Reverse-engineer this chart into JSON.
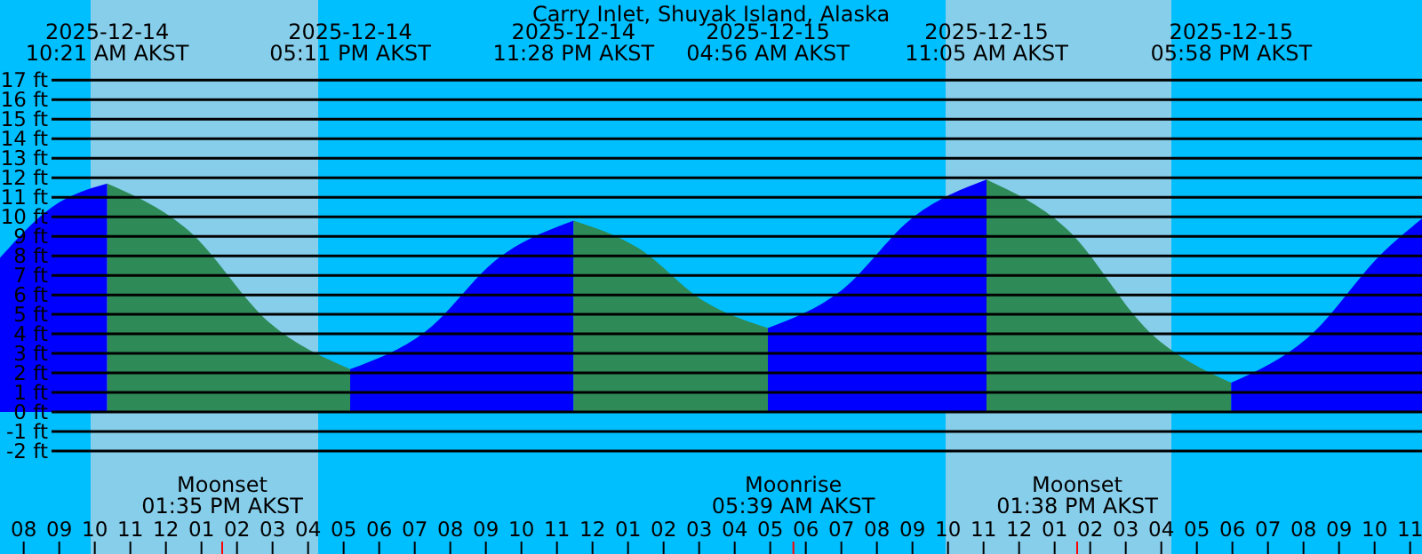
{
  "chart_data": {
    "type": "area",
    "title": "Carry Inlet, Shuyak Island, Alaska",
    "series": [
      {
        "color": "#0000ff",
        "x": [
          "2025-12-14T07:20",
          "2025-12-14T08:48",
          "2025-12-14T10:21"
        ],
        "values": [
          7.9,
          10.5,
          11.7
        ]
      },
      {
        "color": "#2e8b57",
        "x": [
          "2025-12-14T10:21",
          "2025-12-14T12:38",
          "2025-12-14T14:54",
          "2025-12-14T17:11"
        ],
        "values": [
          11.7,
          9.3,
          4.6,
          2.2
        ]
      },
      {
        "color": "#0000ff",
        "x": [
          "2025-12-14T17:11",
          "2025-12-14T19:17",
          "2025-12-14T21:22",
          "2025-12-14T23:28"
        ],
        "values": [
          2.2,
          4.1,
          7.9,
          9.8
        ]
      },
      {
        "color": "#2e8b57",
        "x": [
          "2025-12-14T23:28",
          "2025-12-15T01:17",
          "2025-12-15T03:07",
          "2025-12-15T04:56"
        ],
        "values": [
          9.8,
          8.4,
          5.7,
          4.3
        ]
      },
      {
        "color": "#0000ff",
        "x": [
          "2025-12-15T04:56",
          "2025-12-15T06:59",
          "2025-12-15T09:02",
          "2025-12-15T11:05"
        ],
        "values": [
          4.3,
          6.2,
          10.0,
          11.9
        ]
      },
      {
        "color": "#2e8b57",
        "x": [
          "2025-12-15T11:05",
          "2025-12-15T13:23",
          "2025-12-15T15:40",
          "2025-12-15T17:58"
        ],
        "values": [
          11.9,
          9.3,
          4.1,
          1.5
        ]
      },
      {
        "color": "#0000ff",
        "x": [
          "2025-12-15T17:58",
          "2025-12-15T20:07",
          "2025-12-15T22:15",
          "2025-12-15T23:20"
        ],
        "values": [
          1.5,
          3.8,
          8.2,
          9.9
        ]
      }
    ],
    "xlim": [
      "2025-12-14T07:20",
      "2025-12-15T23:20"
    ],
    "xticks": [
      {
        "value": "2025-12-14T08:00",
        "label": "08"
      },
      {
        "value": "2025-12-14T09:00",
        "label": "09"
      },
      {
        "value": "2025-12-14T10:00",
        "label": "10"
      },
      {
        "value": "2025-12-14T11:00",
        "label": "11"
      },
      {
        "value": "2025-12-14T12:00",
        "label": "12"
      },
      {
        "value": "2025-12-14T13:00",
        "label": "01"
      },
      {
        "value": "2025-12-14T14:00",
        "label": "02"
      },
      {
        "value": "2025-12-14T15:00",
        "label": "03"
      },
      {
        "value": "2025-12-14T16:00",
        "label": "04"
      },
      {
        "value": "2025-12-14T17:00",
        "label": "05"
      },
      {
        "value": "2025-12-14T18:00",
        "label": "06"
      },
      {
        "value": "2025-12-14T19:00",
        "label": "07"
      },
      {
        "value": "2025-12-14T20:00",
        "label": "08"
      },
      {
        "value": "2025-12-14T21:00",
        "label": "09"
      },
      {
        "value": "2025-12-14T22:00",
        "label": "10"
      },
      {
        "value": "2025-12-14T23:00",
        "label": "11"
      },
      {
        "value": "2025-12-15T00:00",
        "label": "12"
      },
      {
        "value": "2025-12-15T01:00",
        "label": "01"
      },
      {
        "value": "2025-12-15T02:00",
        "label": "02"
      },
      {
        "value": "2025-12-15T03:00",
        "label": "03"
      },
      {
        "value": "2025-12-15T04:00",
        "label": "04"
      },
      {
        "value": "2025-12-15T05:00",
        "label": "05"
      },
      {
        "value": "2025-12-15T06:00",
        "label": "06"
      },
      {
        "value": "2025-12-15T07:00",
        "label": "07"
      },
      {
        "value": "2025-12-15T08:00",
        "label": "08"
      },
      {
        "value": "2025-12-15T09:00",
        "label": "09"
      },
      {
        "value": "2025-12-15T10:00",
        "label": "10"
      },
      {
        "value": "2025-12-15T11:00",
        "label": "11"
      },
      {
        "value": "2025-12-15T12:00",
        "label": "12"
      },
      {
        "value": "2025-12-15T13:00",
        "label": "01"
      },
      {
        "value": "2025-12-15T14:00",
        "label": "02"
      },
      {
        "value": "2025-12-15T15:00",
        "label": "03"
      },
      {
        "value": "2025-12-15T16:00",
        "label": "04"
      },
      {
        "value": "2025-12-15T17:00",
        "label": "05"
      },
      {
        "value": "2025-12-15T18:00",
        "label": "06"
      },
      {
        "value": "2025-12-15T19:00",
        "label": "07"
      },
      {
        "value": "2025-12-15T20:00",
        "label": "08"
      },
      {
        "value": "2025-12-15T21:00",
        "label": "09"
      },
      {
        "value": "2025-12-15T22:00",
        "label": "10"
      },
      {
        "value": "2025-12-15T23:00",
        "label": "11"
      }
    ],
    "ylim": [
      -7.27,
      21.1
    ],
    "yticks": [
      {
        "value": -2,
        "label": "-2 ft"
      },
      {
        "value": -1,
        "label": "-1 ft"
      },
      {
        "value": 0,
        "label": "0 ft"
      },
      {
        "value": 1,
        "label": "1 ft"
      },
      {
        "value": 2,
        "label": "2 ft"
      },
      {
        "value": 3,
        "label": "3 ft"
      },
      {
        "value": 4,
        "label": "4 ft"
      },
      {
        "value": 5,
        "label": "5 ft"
      },
      {
        "value": 6,
        "label": "6 ft"
      },
      {
        "value": 7,
        "label": "7 ft"
      },
      {
        "value": 8,
        "label": "8 ft"
      },
      {
        "value": 9,
        "label": "9 ft"
      },
      {
        "value": 10,
        "label": "10 ft"
      },
      {
        "value": 11,
        "label": "11 ft"
      },
      {
        "value": 12,
        "label": "12 ft"
      },
      {
        "value": 13,
        "label": "13 ft"
      },
      {
        "value": 14,
        "label": "14 ft"
      },
      {
        "value": 15,
        "label": "15 ft"
      },
      {
        "value": 16,
        "label": "16 ft"
      },
      {
        "value": 17,
        "label": "17 ft"
      }
    ],
    "grid": "y",
    "bands": [
      {
        "axis": "x",
        "from": "2025-12-14T09:53",
        "to": "2025-12-14T16:17",
        "color": "#87ceeb"
      },
      {
        "axis": "x",
        "from": "2025-12-15T09:56",
        "to": "2025-12-15T16:17",
        "color": "#87ceeb"
      }
    ],
    "ref_lines": [
      {
        "axis": "x",
        "value": "2025-12-14T13:35",
        "label": "Moonset\n01:35 PM AKST",
        "color": "#ff0000"
      },
      {
        "axis": "x",
        "value": "2025-12-15T05:39",
        "label": "Moonrise\n05:39 AM AKST",
        "color": "#ff0000"
      },
      {
        "axis": "x",
        "value": "2025-12-15T13:38",
        "label": "Moonset\n01:38 PM AKST",
        "color": "#ff0000"
      }
    ],
    "annotations": [
      "2025-12-14\n10:21 AM AKST",
      "2025-12-14\n05:11 PM AKST",
      "2025-12-14\n11:28 PM AKST",
      "2025-12-15\n04:56 AM AKST",
      "2025-12-15\n11:05 AM AKST",
      "2025-12-15\n05:58 PM AKST"
    ]
  }
}
